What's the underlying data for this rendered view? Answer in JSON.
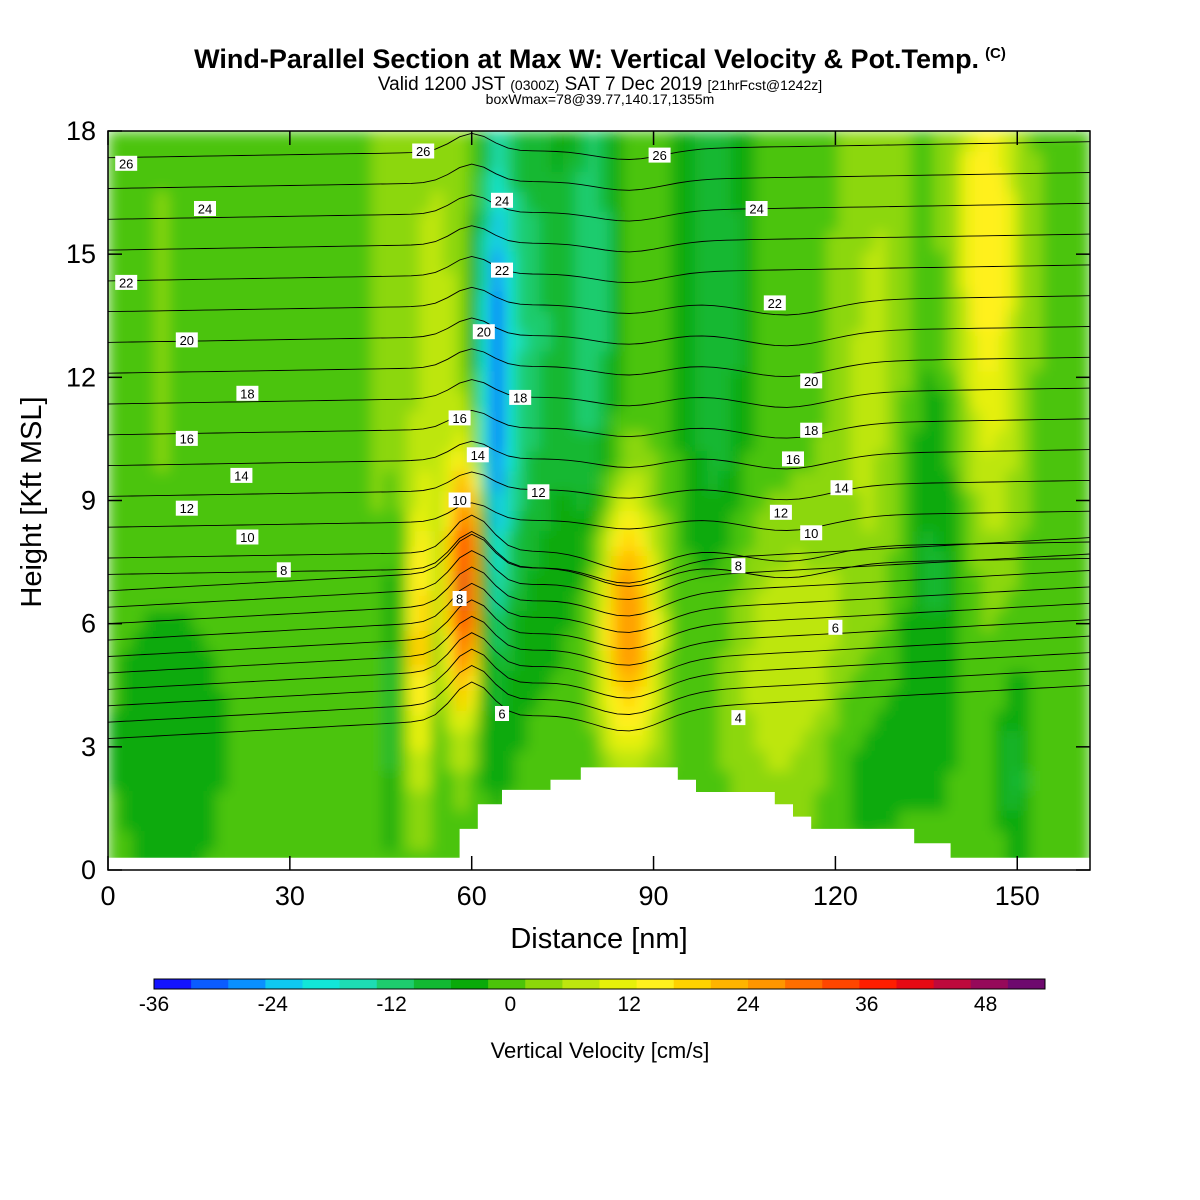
{
  "header": {
    "title": "Wind-Parallel Section at Max W: Vertical Velocity & Pot.Temp.",
    "title_mark": "(C)",
    "subtitle_a": "Valid 1200 JST ",
    "subtitle_b": "(0300Z)",
    "subtitle_c": " SAT 7 Dec 2019 ",
    "subtitle_d": "[21hrFcst@1242z]",
    "line3": "boxWmax=78@39.77,140.17,1355m"
  },
  "chart_data": {
    "type": "heatmap",
    "xlabel": "Distance [nm]",
    "ylabel": "Height [Kft MSL]",
    "xlim": [
      0,
      162
    ],
    "ylim": [
      0,
      18
    ],
    "xticks": [
      "0",
      "30",
      "60",
      "90",
      "120",
      "150"
    ],
    "xtick_values": [
      0,
      30,
      60,
      90,
      120,
      150
    ],
    "yticks": [
      "0",
      "3",
      "6",
      "9",
      "12",
      "15",
      "18"
    ],
    "ytick_values": [
      0,
      3,
      6,
      9,
      12,
      15,
      18
    ],
    "colorbar": {
      "title": "Vertical Velocity [cm/s]",
      "range": [
        -36,
        54
      ],
      "step": 4,
      "labels": [
        "-36",
        "-24",
        "-12",
        "0",
        "12",
        "24",
        "36",
        "48"
      ],
      "label_values": [
        -36,
        -24,
        -12,
        0,
        12,
        24,
        36,
        48
      ],
      "colors": [
        "#1414ff",
        "#0b5cff",
        "#0a90ff",
        "#10c8f0",
        "#12e6d8",
        "#1edcb4",
        "#1ecc6e",
        "#12b832",
        "#0aaa0a",
        "#4cc40a",
        "#8cd70a",
        "#bde60f",
        "#e6f00a",
        "#fff01e",
        "#ffd200",
        "#ffb400",
        "#ff9600",
        "#ff6e00",
        "#ff4600",
        "#ff1e00",
        "#e60a14",
        "#be0a3c",
        "#960a5a",
        "#6e0a6e"
      ]
    },
    "terrain_kft": [
      [
        0,
        0.3
      ],
      [
        58,
        0.3
      ],
      [
        58,
        1.0
      ],
      [
        61,
        1.0
      ],
      [
        61,
        1.6
      ],
      [
        65,
        1.6
      ],
      [
        65,
        1.95
      ],
      [
        73,
        1.95
      ],
      [
        73,
        2.2
      ],
      [
        78,
        2.2
      ],
      [
        78,
        2.5
      ],
      [
        94,
        2.5
      ],
      [
        94,
        2.2
      ],
      [
        97,
        2.2
      ],
      [
        97,
        1.9
      ],
      [
        110,
        1.9
      ],
      [
        110,
        1.6
      ],
      [
        113,
        1.6
      ],
      [
        113,
        1.3
      ],
      [
        116,
        1.3
      ],
      [
        116,
        1.0
      ],
      [
        133,
        1.0
      ],
      [
        133,
        0.65
      ],
      [
        139,
        0.65
      ],
      [
        139,
        0.3
      ],
      [
        162,
        0.3
      ]
    ],
    "theta_contour_labels": [
      {
        "text": "26",
        "x": 3,
        "y": 17.2
      },
      {
        "text": "26",
        "x": 52,
        "y": 17.5
      },
      {
        "text": "26",
        "x": 91,
        "y": 17.4
      },
      {
        "text": "24",
        "x": 16,
        "y": 16.1
      },
      {
        "text": "24",
        "x": 65,
        "y": 16.3
      },
      {
        "text": "24",
        "x": 107,
        "y": 16.1
      },
      {
        "text": "22",
        "x": 3,
        "y": 14.3
      },
      {
        "text": "22",
        "x": 65,
        "y": 14.6
      },
      {
        "text": "22",
        "x": 110,
        "y": 13.8
      },
      {
        "text": "20",
        "x": 13,
        "y": 12.9
      },
      {
        "text": "20",
        "x": 62,
        "y": 13.1
      },
      {
        "text": "20",
        "x": 116,
        "y": 11.9
      },
      {
        "text": "18",
        "x": 23,
        "y": 11.6
      },
      {
        "text": "18",
        "x": 68,
        "y": 11.5
      },
      {
        "text": "18",
        "x": 116,
        "y": 10.7
      },
      {
        "text": "16",
        "x": 13,
        "y": 10.5
      },
      {
        "text": "16",
        "x": 58,
        "y": 11.0
      },
      {
        "text": "16",
        "x": 113,
        "y": 10.0
      },
      {
        "text": "14",
        "x": 22,
        "y": 9.6
      },
      {
        "text": "14",
        "x": 61,
        "y": 10.1
      },
      {
        "text": "14",
        "x": 121,
        "y": 9.3
      },
      {
        "text": "12",
        "x": 13,
        "y": 8.8
      },
      {
        "text": "12",
        "x": 71,
        "y": 9.2
      },
      {
        "text": "12",
        "x": 111,
        "y": 8.7
      },
      {
        "text": "10",
        "x": 23,
        "y": 8.1
      },
      {
        "text": "10",
        "x": 58,
        "y": 9.0
      },
      {
        "text": "10",
        "x": 116,
        "y": 8.2
      },
      {
        "text": "8",
        "x": 29,
        "y": 7.3
      },
      {
        "text": "8",
        "x": 58,
        "y": 6.6
      },
      {
        "text": "8",
        "x": 104,
        "y": 7.4
      },
      {
        "text": "6",
        "x": 65,
        "y": 3.8
      },
      {
        "text": "6",
        "x": 120,
        "y": 5.9
      },
      {
        "text": "4",
        "x": 104,
        "y": 3.7
      }
    ]
  }
}
